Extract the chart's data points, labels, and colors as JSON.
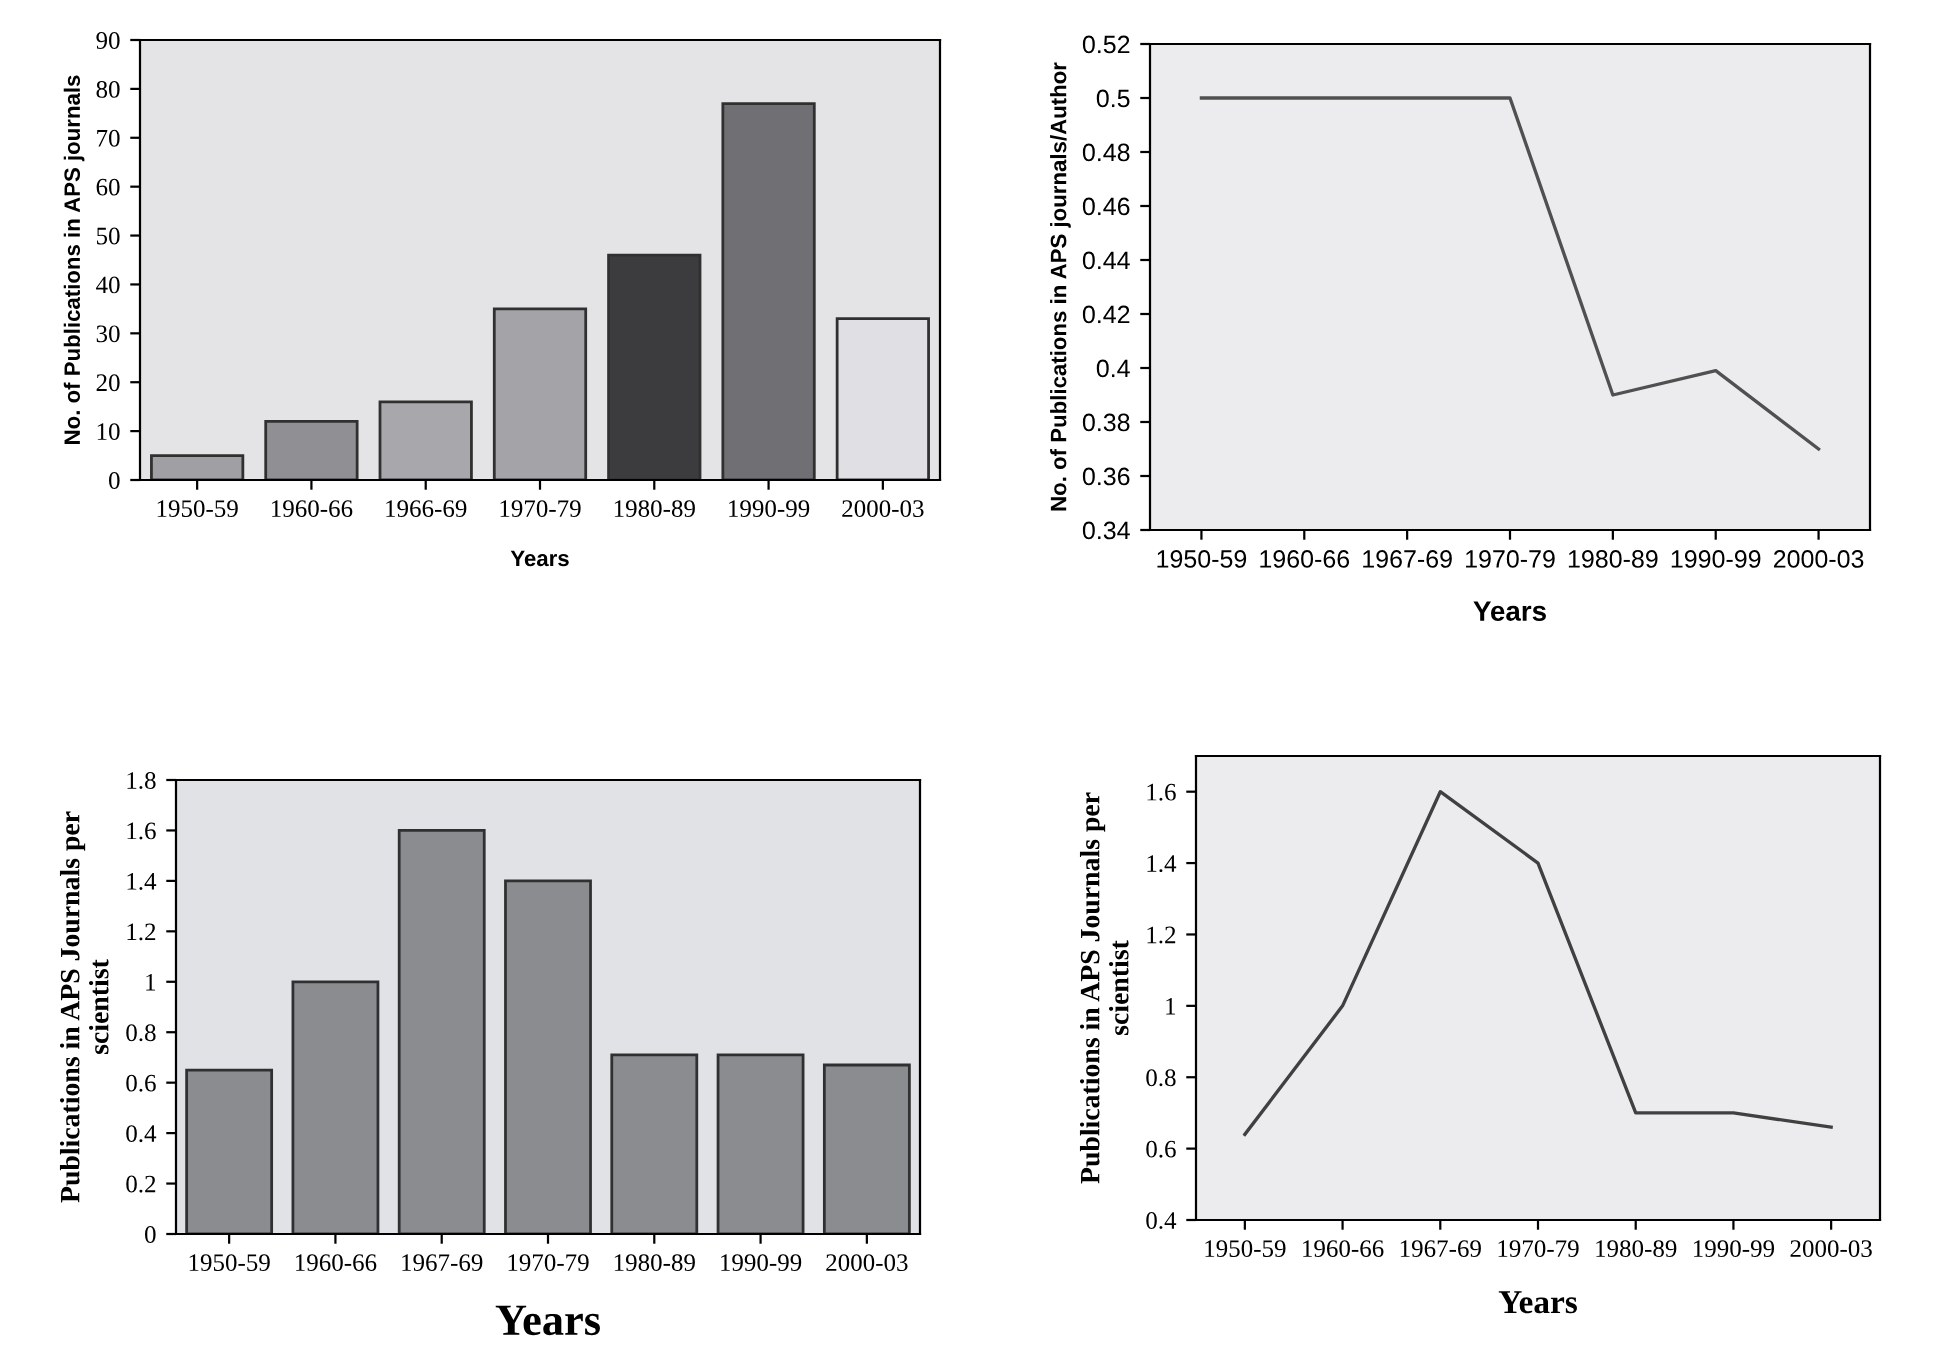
{
  "chart_data": [
    {
      "type": "bar",
      "categories": [
        "1950-59",
        "1960-66",
        "1966-69",
        "1970-79",
        "1980-89",
        "1990-99",
        "2000-03"
      ],
      "values": [
        5,
        12,
        16,
        35,
        46,
        77,
        33
      ],
      "colors": [
        "#a0a0a4",
        "#909094",
        "#a8a8ac",
        "#a4a4a8",
        "#3c3c3e",
        "#707074",
        "#e0e0e4"
      ],
      "xlabel": "Years",
      "ylabel": "No. of Publications in APS journals",
      "ylim": [
        0,
        90
      ],
      "yticks": [
        0,
        10,
        20,
        30,
        40,
        50,
        60,
        70,
        80,
        90
      ],
      "grid": false
    },
    {
      "type": "line",
      "categories": [
        "1950-59",
        "1960-66",
        "1967-69",
        "1970-79",
        "1980-89",
        "1990-99",
        "2000-03"
      ],
      "values": [
        0.5,
        0.5,
        0.5,
        0.5,
        0.39,
        0.399,
        0.37
      ],
      "color": "#505050",
      "xlabel": "Years",
      "ylabel": "No. of Publications in APS journals/Author",
      "ylim": [
        0.34,
        0.52
      ],
      "yticks": [
        0.34,
        0.36,
        0.38,
        0.4,
        0.42,
        0.44,
        0.46,
        0.48,
        0.5,
        0.52
      ],
      "grid": false
    },
    {
      "type": "bar",
      "categories": [
        "1950-59",
        "1960-66",
        "1967-69",
        "1970-79",
        "1980-89",
        "1990-99",
        "2000-03"
      ],
      "values": [
        0.65,
        1,
        1.6,
        1.4,
        0.71,
        0.71,
        0.67
      ],
      "color": "#8a8c90",
      "xlabel": "Years",
      "ylabel": "Publications in APS Journals per\nscientist",
      "ylim": [
        0,
        1.8
      ],
      "yticks": [
        0,
        0.2,
        0.4,
        0.6,
        0.8,
        1,
        1.2,
        1.4,
        1.6,
        1.8
      ],
      "grid": false
    },
    {
      "type": "line",
      "categories": [
        "1950-59",
        "1960-66",
        "1967-69",
        "1970-79",
        "1980-89",
        "1990-99",
        "2000-03"
      ],
      "values": [
        0.64,
        1,
        1.6,
        1.4,
        0.7,
        0.7,
        0.66
      ],
      "color": "#404040",
      "xlabel": "Years",
      "ylabel": "Publications in APS Journals per\nscientist",
      "ylim": [
        0.4,
        1.7
      ],
      "yticks": [
        0.4,
        0.6,
        0.8,
        1,
        1.2,
        1.4,
        1.6
      ],
      "grid": false
    }
  ]
}
